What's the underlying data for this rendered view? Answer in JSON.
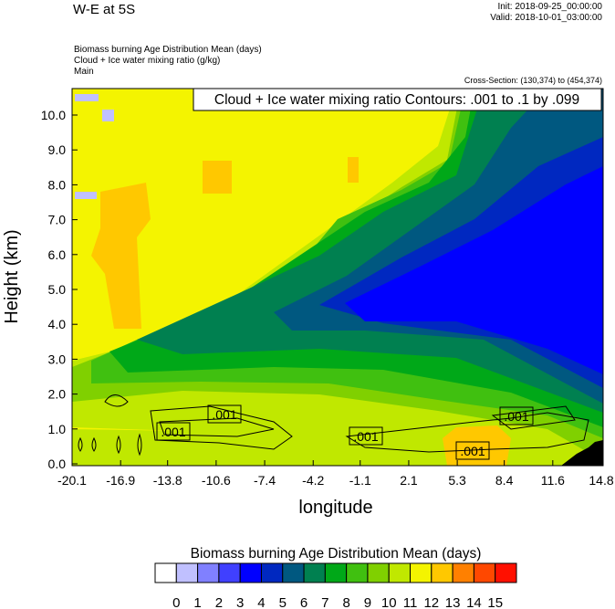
{
  "header": {
    "title": "W-E at 5S",
    "init": "Init: 2018-09-25_00:00:00",
    "valid": "Valid: 2018-10-01_03:00:00",
    "subtitle_lines": [
      "Biomass burning Age Distribution Mean   (days)",
      "Cloud + Ice water mixing ratio   (g/kg)",
      "Main"
    ],
    "cross_section": "Cross-Section: (130,374) to (454,374)"
  },
  "chart_data": {
    "type": "heatmap",
    "title": "W-E at 5S",
    "xlabel": "longitude",
    "ylabel": "Height (km)",
    "xlim": [
      -20.1,
      14.8
    ],
    "ylim": [
      0,
      10.8
    ],
    "x_ticks": [
      "-20.1",
      "-16.9",
      "-13.8",
      "-10.6",
      "-7.4",
      "-4.2",
      "-1.1",
      "2.1",
      "5.3",
      "8.4",
      "11.6",
      "14.8"
    ],
    "y_ticks": [
      "0.0",
      "1.0",
      "2.0",
      "3.0",
      "4.0",
      "5.0",
      "6.0",
      "7.0",
      "8.0",
      "9.0",
      "10.0"
    ],
    "contour_title": "Cloud + Ice water mixing ratio Contours: .001 to .1 by .099",
    "contour_labels": [
      ".001",
      ".001",
      ".001",
      ".001",
      ".001"
    ],
    "colorbar": {
      "title": "Biomass burning Age Distribution Mean  (days)",
      "levels": [
        "0",
        "1",
        "2",
        "3",
        "4",
        "5",
        "6",
        "7",
        "8",
        "9",
        "10",
        "11",
        "12",
        "13",
        "14",
        "15"
      ],
      "colors": [
        "#ffffff",
        "#c0c0ff",
        "#8080ff",
        "#4040ff",
        "#0000ff",
        "#0028c0",
        "#005880",
        "#008050",
        "#00a818",
        "#40c010",
        "#80d000",
        "#c0e800",
        "#f4f400",
        "#ffc800",
        "#ff8000",
        "#ff4800",
        "#ff1000"
      ]
    }
  }
}
